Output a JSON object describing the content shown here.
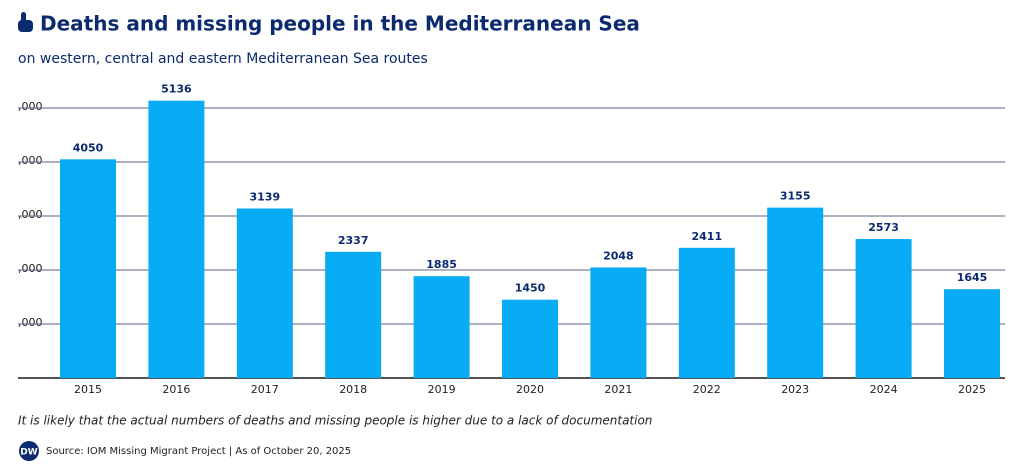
{
  "chart_data": {
    "type": "bar",
    "title": "Deaths and missing people in the Mediterranean Sea",
    "subtitle": "on western, central and eastern Mediterranean Sea routes",
    "categories": [
      "2015",
      "2016",
      "2017",
      "2018",
      "2019",
      "2020",
      "2021",
      "2022",
      "2023",
      "2024",
      "2025"
    ],
    "values": [
      4050,
      5136,
      3139,
      2337,
      1885,
      1450,
      2048,
      2411,
      3155,
      2573,
      1645
    ],
    "color": "#08acf5",
    "ylim": [
      0,
      5500
    ],
    "yticks": [
      {
        "value": 1000,
        "label": ",000"
      },
      {
        "value": 2000,
        "label": ",000"
      },
      {
        "value": 3000,
        "label": ",000"
      },
      {
        "value": 4000,
        "label": ",000"
      },
      {
        "value": 5000,
        "label": ",000"
      }
    ],
    "grid": true,
    "note": "It is likely that the actual numbers of deaths and missing people is higher due to a lack of documentation",
    "logo": "DW",
    "source": "Source: IOM Missing Migrant Project | As of October 20, 2025"
  }
}
